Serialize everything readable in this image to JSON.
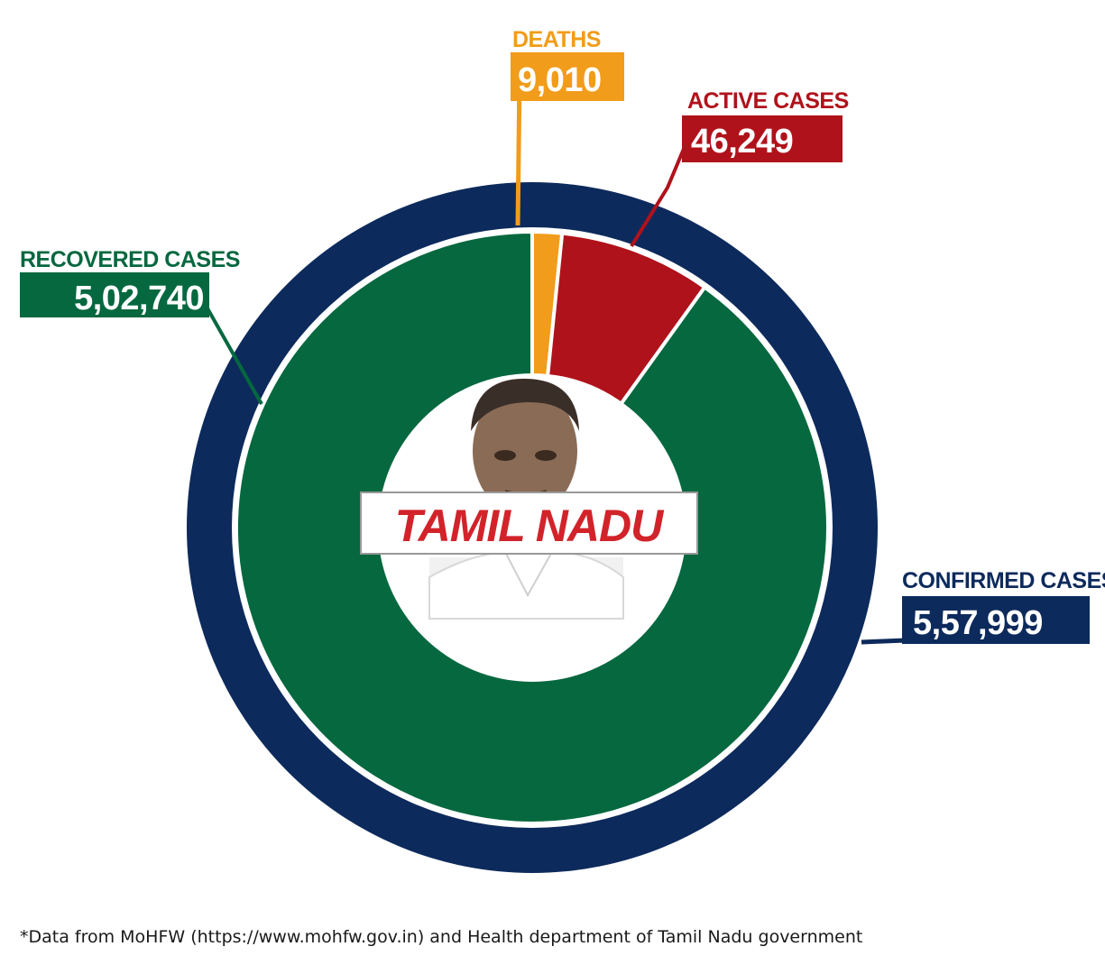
{
  "colors": {
    "confirmed": "#0d2a5c",
    "recovered": "#05683f",
    "active": "#b0121b",
    "deaths": "#f19c1a",
    "title": "#d2232a"
  },
  "chart_data": {
    "type": "pie",
    "title": "TAMIL NADU",
    "outer_ring": {
      "label": "CONFIRMED CASES",
      "display": "5,57,999",
      "value": 557999
    },
    "slices": [
      {
        "key": "recovered",
        "label": "RECOVERED CASES",
        "display": "5,02,740",
        "value": 502740
      },
      {
        "key": "deaths",
        "label": "DEATHS",
        "display": "9,010",
        "value": 9010
      },
      {
        "key": "active",
        "label": "ACTIVE CASES",
        "display": "46,249",
        "value": 46249
      }
    ]
  },
  "center": {
    "title": "TAMIL NADU",
    "image_icon": "portrait-photo-icon"
  },
  "footnote": "*Data from MoHFW (https://www.mohfw.gov.in) and Health department of Tamil Nadu government"
}
